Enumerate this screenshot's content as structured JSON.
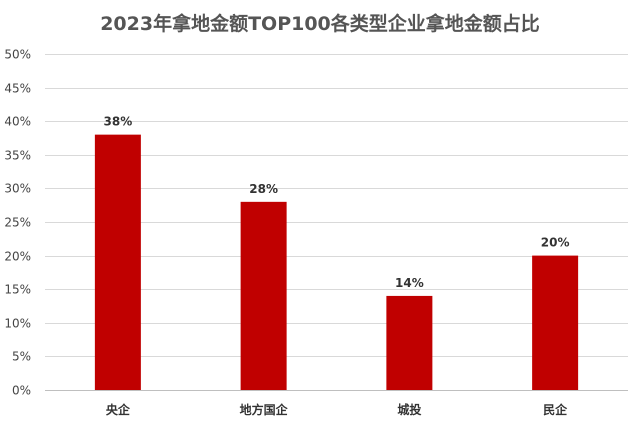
{
  "chart_data": {
    "type": "bar",
    "title": "2023年拿地金额TOP100各类型企业拿地金额占比",
    "xlabel": "",
    "ylabel": "",
    "categories": [
      "央企",
      "地方国企",
      "城投",
      "民企"
    ],
    "values": [
      38,
      28,
      14,
      20
    ],
    "data_labels": [
      "38%",
      "28%",
      "14%",
      "20%"
    ],
    "ylim": [
      0,
      50
    ],
    "yticks": [
      0,
      5,
      10,
      15,
      20,
      25,
      30,
      35,
      40,
      45,
      50
    ],
    "ytick_labels": [
      "0%",
      "5%",
      "10%",
      "15%",
      "20%",
      "25%",
      "30%",
      "35%",
      "40%",
      "45%",
      "50%"
    ],
    "grid": true,
    "legend": "none",
    "colors": {
      "bar": "#c00000",
      "grid": "#d9d9d9",
      "title": "#555555"
    }
  }
}
